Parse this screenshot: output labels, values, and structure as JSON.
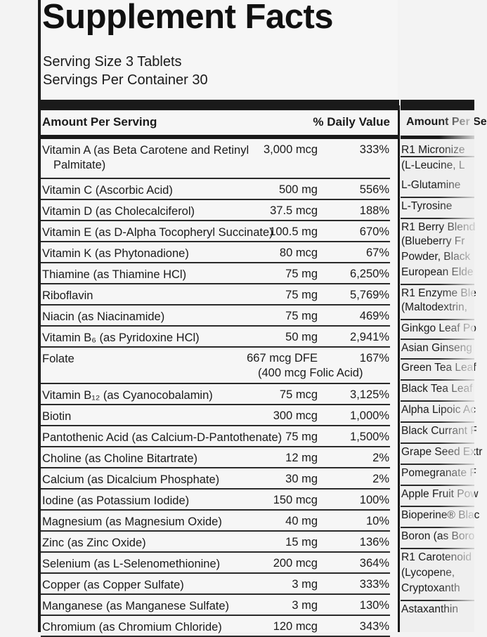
{
  "label": {
    "title": "Supplement Facts",
    "serving_size": "Serving Size 3 Tablets",
    "servings_per_container": "Servings Per Container 30",
    "header_amount": "Amount Per Serving",
    "header_dv": "% Daily Value",
    "rows": [
      {
        "name": "Vitamin A (as Beta Carotene and Retinyl",
        "name2": "Palmitate)",
        "amount": "3,000 mcg",
        "dv": "333%"
      },
      {
        "name": "Vitamin C (Ascorbic Acid)",
        "amount": "500 mg",
        "dv": "556%"
      },
      {
        "name": "Vitamin D (as Cholecalciferol)",
        "amount": "37.5 mcg",
        "dv": "188%"
      },
      {
        "name": "Vitamin E (as D-Alpha Tocopheryl Succinate)",
        "amount": "100.5 mg",
        "dv": "670%"
      },
      {
        "name": "Vitamin K (as Phytonadione)",
        "amount": "80 mcg",
        "dv": "67%"
      },
      {
        "name": "Thiamine (as Thiamine HCl)",
        "amount": "75 mg",
        "dv": "6,250%"
      },
      {
        "name": "Riboflavin",
        "amount": "75 mg",
        "dv": "5,769%"
      },
      {
        "name": "Niacin (as Niacinamide)",
        "amount": "75 mg",
        "dv": "469%"
      },
      {
        "name": "Vitamin B₆ (as Pyridoxine HCl)",
        "amount": "50 mg",
        "dv": "2,941%"
      },
      {
        "name": "Folate",
        "amount": "667 mcg DFE",
        "amount2": "(400 mcg Folic Acid)",
        "dv": "167%"
      },
      {
        "name": "Vitamin B₁₂ (as Cyanocobalamin)",
        "amount": "75 mcg",
        "dv": "3,125%"
      },
      {
        "name": "Biotin",
        "amount": "300 mcg",
        "dv": "1,000%"
      },
      {
        "name": "Pantothenic Acid (as Calcium-D-Pantothenate)",
        "amount": "75 mg",
        "dv": "1,500%"
      },
      {
        "name": "Choline (as Choline Bitartrate)",
        "amount": "12 mg",
        "dv": "2%"
      },
      {
        "name": "Calcium (as Dicalcium Phosphate)",
        "amount": "30 mg",
        "dv": "2%"
      },
      {
        "name": "Iodine (as Potassium Iodide)",
        "amount": "150 mcg",
        "dv": "100%"
      },
      {
        "name": "Magnesium (as Magnesium Oxide)",
        "amount": "40 mg",
        "dv": "10%"
      },
      {
        "name": "Zinc (as Zinc Oxide)",
        "amount": "15 mg",
        "dv": "136%"
      },
      {
        "name": "Selenium (as L-Selenomethionine)",
        "amount": "200 mcg",
        "dv": "364%"
      },
      {
        "name": "Copper (as Copper Sulfate)",
        "amount": "3 mg",
        "dv": "333%"
      },
      {
        "name": "Manganese (as Manganese Sulfate)",
        "amount": "3 mg",
        "dv": "130%"
      },
      {
        "name": "Chromium (as Chromium Chloride)",
        "amount": "120 mcg",
        "dv": "343%"
      }
    ]
  },
  "right_column": {
    "header": "Amount Per Se",
    "items": [
      "R1 Micronize",
      "(L-Leucine, L",
      "L-Glutamine",
      "L-Tyrosine",
      "R1 Berry Blend",
      "(Blueberry Fr",
      "Powder, Black",
      "European Elde",
      "R1 Enzyme Ble",
      "(Maltodextrin,",
      "Ginkgo Leaf Po",
      "Asian Ginseng",
      "Green Tea Leaf",
      "Black Tea Leaf",
      "Alpha Lipoic Ac",
      "Black Currant F",
      "Grape Seed Extr",
      "Pomegranate F",
      "Apple Fruit Pow",
      "Bioperine® Blac",
      "Boron (as Boro",
      "R1 Carotenoid",
      "(Lycopene,",
      "Cryptoxanth",
      "Astaxanthin"
    ]
  }
}
